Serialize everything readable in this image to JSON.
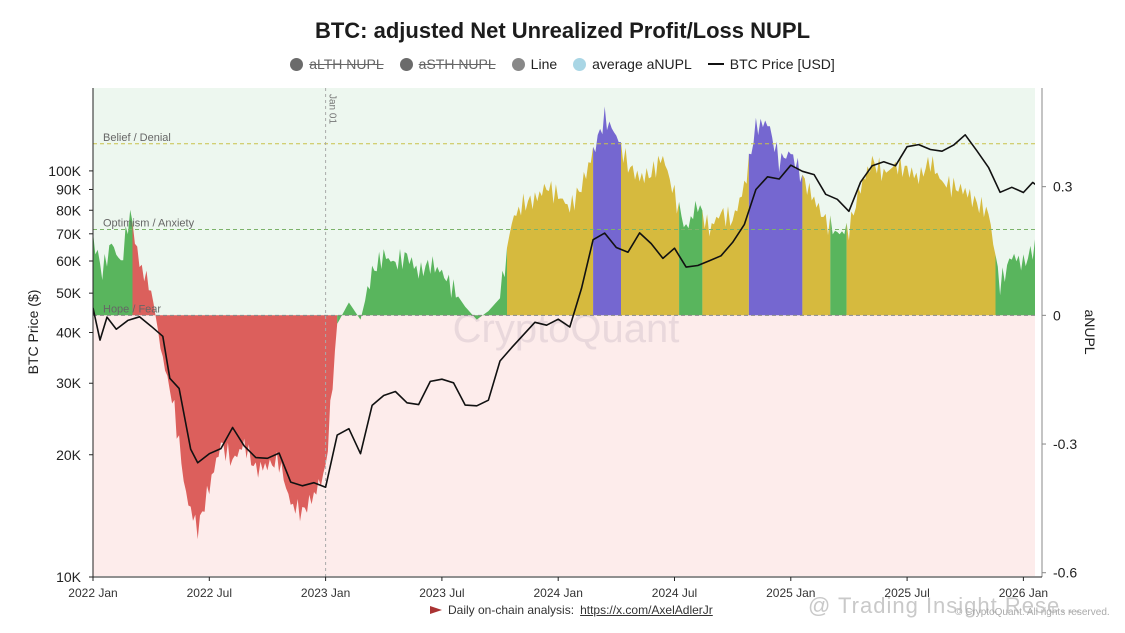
{
  "title": "BTC: adjusted Net Unrealized Profit/Loss NUPL",
  "legend": [
    {
      "label": "aLTH NUPL",
      "color": "#6b6b6b",
      "hidden": true,
      "icon": "dot-icon"
    },
    {
      "label": "aSTH NUPL",
      "color": "#6b6b6b",
      "hidden": true,
      "icon": "dot-icon"
    },
    {
      "label": "Line",
      "color": "#888888",
      "hidden": false,
      "icon": "dot-icon"
    },
    {
      "label": "average aNUPL",
      "color": "#a9d6e5",
      "hidden": false,
      "icon": "dot-icon"
    },
    {
      "label": "BTC Price [USD]",
      "color": "#111111",
      "hidden": false,
      "icon": "line-icon"
    }
  ],
  "footer": {
    "prefix": "Daily on-chain analysis:",
    "link": "https://x.com/AxelAdlerJr",
    "watermark": "CryptoQuant",
    "corner_watermark": "@ Trading Insight Rese...",
    "copyright": "© CryptoQuant. All rights reserved."
  },
  "colors": {
    "profit_zone": "#edf7ef",
    "loss_zone": "#fdeceb",
    "green": "#4caf50",
    "yellow": "#d4b42f",
    "purple": "#6a5acd",
    "red": "#d9534f",
    "price_line": "#111111"
  },
  "chart_data": {
    "type": "area",
    "title": "BTC: adjusted Net Unrealized Profit/Loss NUPL",
    "xlabel": "",
    "ylabel": "BTC Price ($)",
    "y2label": "aNUPL",
    "x_range": [
      2022.0,
      2026.08
    ],
    "x_ticks": [
      {
        "t": 2022.0,
        "label": "2022 Jan"
      },
      {
        "t": 2022.5,
        "label": "2022 Jul"
      },
      {
        "t": 2023.0,
        "label": "2023 Jan"
      },
      {
        "t": 2023.5,
        "label": "2023 Jul"
      },
      {
        "t": 2024.0,
        "label": "2024 Jan"
      },
      {
        "t": 2024.5,
        "label": "2024 Jul"
      },
      {
        "t": 2025.0,
        "label": "2025 Jan"
      },
      {
        "t": 2025.5,
        "label": "2025 Jul"
      },
      {
        "t": 2026.0,
        "label": "2026 Jan"
      }
    ],
    "price_axis": {
      "scale": "log",
      "range": [
        10000,
        160000
      ],
      "ticks": [
        {
          "v": 10000,
          "label": "10K"
        },
        {
          "v": 20000,
          "label": "20K"
        },
        {
          "v": 30000,
          "label": "30K"
        },
        {
          "v": 40000,
          "label": "40K"
        },
        {
          "v": 50000,
          "label": "50K"
        },
        {
          "v": 60000,
          "label": "60K"
        },
        {
          "v": 70000,
          "label": "70K"
        },
        {
          "v": 80000,
          "label": "80K"
        },
        {
          "v": 90000,
          "label": "90K"
        },
        {
          "v": 100000,
          "label": "100K"
        }
      ]
    },
    "anupl_axis": {
      "range": [
        -0.61,
        0.53
      ],
      "ticks": [
        {
          "v": 0.3,
          "label": "0.3"
        },
        {
          "v": 0,
          "label": "0"
        },
        {
          "v": -0.3,
          "label": "-0.3"
        },
        {
          "v": -0.6,
          "label": "-0.6"
        }
      ]
    },
    "zones": [
      {
        "label": "Belief / Denial",
        "value": 0.4,
        "color": "#c9c24a"
      },
      {
        "label": "Optimism / Anxiety",
        "value": 0.2,
        "color": "#7cb36a"
      },
      {
        "label": "Hope / Fear",
        "value": 0.0,
        "color": "#8a8a8a"
      }
    ],
    "vertical_markers": [
      {
        "t": 2023.0,
        "label": "Jan 01"
      }
    ],
    "anupl_series": [
      [
        2022.0,
        0.18
      ],
      [
        2022.04,
        0.1
      ],
      [
        2022.08,
        0.17
      ],
      [
        2022.12,
        0.12
      ],
      [
        2022.16,
        0.24
      ],
      [
        2022.2,
        0.12
      ],
      [
        2022.25,
        0.06
      ],
      [
        2022.3,
        -0.1
      ],
      [
        2022.35,
        -0.22
      ],
      [
        2022.4,
        -0.42
      ],
      [
        2022.45,
        -0.5
      ],
      [
        2022.5,
        -0.4
      ],
      [
        2022.55,
        -0.3
      ],
      [
        2022.6,
        -0.34
      ],
      [
        2022.65,
        -0.3
      ],
      [
        2022.7,
        -0.36
      ],
      [
        2022.75,
        -0.35
      ],
      [
        2022.8,
        -0.34
      ],
      [
        2022.85,
        -0.44
      ],
      [
        2022.9,
        -0.46
      ],
      [
        2022.95,
        -0.42
      ],
      [
        2023.0,
        -0.36
      ],
      [
        2023.05,
        -0.02
      ],
      [
        2023.1,
        0.03
      ],
      [
        2023.15,
        -0.01
      ],
      [
        2023.2,
        0.1
      ],
      [
        2023.25,
        0.14
      ],
      [
        2023.3,
        0.12
      ],
      [
        2023.35,
        0.14
      ],
      [
        2023.4,
        0.1
      ],
      [
        2023.45,
        0.12
      ],
      [
        2023.5,
        0.1
      ],
      [
        2023.55,
        0.06
      ],
      [
        2023.6,
        0.02
      ],
      [
        2023.65,
        -0.01
      ],
      [
        2023.7,
        0.01
      ],
      [
        2023.75,
        0.04
      ],
      [
        2023.8,
        0.22
      ],
      [
        2023.85,
        0.26
      ],
      [
        2023.9,
        0.27
      ],
      [
        2023.95,
        0.3
      ],
      [
        2024.0,
        0.28
      ],
      [
        2024.05,
        0.25
      ],
      [
        2024.1,
        0.3
      ],
      [
        2024.15,
        0.38
      ],
      [
        2024.2,
        0.46
      ],
      [
        2024.25,
        0.42
      ],
      [
        2024.3,
        0.35
      ],
      [
        2024.35,
        0.32
      ],
      [
        2024.4,
        0.33
      ],
      [
        2024.45,
        0.37
      ],
      [
        2024.5,
        0.28
      ],
      [
        2024.55,
        0.2
      ],
      [
        2024.6,
        0.26
      ],
      [
        2024.65,
        0.2
      ],
      [
        2024.7,
        0.24
      ],
      [
        2024.75,
        0.22
      ],
      [
        2024.8,
        0.3
      ],
      [
        2024.85,
        0.44
      ],
      [
        2024.9,
        0.45
      ],
      [
        2024.95,
        0.36
      ],
      [
        2025.0,
        0.38
      ],
      [
        2025.05,
        0.32
      ],
      [
        2025.1,
        0.27
      ],
      [
        2025.15,
        0.22
      ],
      [
        2025.2,
        0.19
      ],
      [
        2025.25,
        0.2
      ],
      [
        2025.3,
        0.3
      ],
      [
        2025.35,
        0.36
      ],
      [
        2025.4,
        0.33
      ],
      [
        2025.45,
        0.35
      ],
      [
        2025.5,
        0.34
      ],
      [
        2025.55,
        0.32
      ],
      [
        2025.6,
        0.36
      ],
      [
        2025.65,
        0.31
      ],
      [
        2025.7,
        0.3
      ],
      [
        2025.75,
        0.29
      ],
      [
        2025.8,
        0.26
      ],
      [
        2025.85,
        0.24
      ],
      [
        2025.9,
        0.07
      ],
      [
        2025.95,
        0.14
      ],
      [
        2026.0,
        0.12
      ],
      [
        2026.05,
        0.16
      ],
      [
        2026.07,
        0.12
      ]
    ],
    "price_series": [
      [
        2022.0,
        46000
      ],
      [
        2022.03,
        38000
      ],
      [
        2022.06,
        43000
      ],
      [
        2022.1,
        40000
      ],
      [
        2022.15,
        42000
      ],
      [
        2022.2,
        43000
      ],
      [
        2022.25,
        41000
      ],
      [
        2022.3,
        39000
      ],
      [
        2022.33,
        31000
      ],
      [
        2022.37,
        29500
      ],
      [
        2022.42,
        21000
      ],
      [
        2022.45,
        19500
      ],
      [
        2022.5,
        20500
      ],
      [
        2022.55,
        21000
      ],
      [
        2022.6,
        23500
      ],
      [
        2022.65,
        21000
      ],
      [
        2022.7,
        19500
      ],
      [
        2022.75,
        19300
      ],
      [
        2022.8,
        19800
      ],
      [
        2022.85,
        16800
      ],
      [
        2022.9,
        16500
      ],
      [
        2022.95,
        16900
      ],
      [
        2023.0,
        16600
      ],
      [
        2023.05,
        22500
      ],
      [
        2023.1,
        23500
      ],
      [
        2023.15,
        20500
      ],
      [
        2023.2,
        27000
      ],
      [
        2023.25,
        28500
      ],
      [
        2023.3,
        29000
      ],
      [
        2023.35,
        27000
      ],
      [
        2023.4,
        26500
      ],
      [
        2023.45,
        30000
      ],
      [
        2023.5,
        30200
      ],
      [
        2023.55,
        29500
      ],
      [
        2023.6,
        26000
      ],
      [
        2023.65,
        26000
      ],
      [
        2023.7,
        27000
      ],
      [
        2023.75,
        34000
      ],
      [
        2023.8,
        37000
      ],
      [
        2023.9,
        43000
      ],
      [
        2023.95,
        42500
      ],
      [
        2024.0,
        44000
      ],
      [
        2024.05,
        42000
      ],
      [
        2024.1,
        52000
      ],
      [
        2024.15,
        68000
      ],
      [
        2024.2,
        70000
      ],
      [
        2024.25,
        64000
      ],
      [
        2024.3,
        62000
      ],
      [
        2024.35,
        69000
      ],
      [
        2024.4,
        65000
      ],
      [
        2024.45,
        60000
      ],
      [
        2024.5,
        64000
      ],
      [
        2024.55,
        58000
      ],
      [
        2024.6,
        59000
      ],
      [
        2024.65,
        61000
      ],
      [
        2024.7,
        63000
      ],
      [
        2024.75,
        68000
      ],
      [
        2024.8,
        75000
      ],
      [
        2024.85,
        91000
      ],
      [
        2024.9,
        97000
      ],
      [
        2024.95,
        95000
      ],
      [
        2025.0,
        102000
      ],
      [
        2025.05,
        98000
      ],
      [
        2025.1,
        96000
      ],
      [
        2025.15,
        86000
      ],
      [
        2025.2,
        84000
      ],
      [
        2025.25,
        79000
      ],
      [
        2025.3,
        94000
      ],
      [
        2025.35,
        104000
      ],
      [
        2025.4,
        107000
      ],
      [
        2025.45,
        105000
      ],
      [
        2025.5,
        117000
      ],
      [
        2025.55,
        118000
      ],
      [
        2025.6,
        114000
      ],
      [
        2025.65,
        112000
      ],
      [
        2025.7,
        115000
      ],
      [
        2025.75,
        121000
      ],
      [
        2025.8,
        110000
      ],
      [
        2025.85,
        100000
      ],
      [
        2025.9,
        87000
      ],
      [
        2025.95,
        90000
      ],
      [
        2026.0,
        88000
      ],
      [
        2026.04,
        94000
      ],
      [
        2026.07,
        91000
      ]
    ],
    "color_segments": [
      {
        "from": 2022.0,
        "to": 2022.17,
        "color": "green"
      },
      {
        "from": 2022.17,
        "to": 2023.05,
        "color": "red"
      },
      {
        "from": 2023.05,
        "to": 2023.78,
        "color": "green"
      },
      {
        "from": 2023.78,
        "to": 2024.15,
        "color": "yellow"
      },
      {
        "from": 2024.15,
        "to": 2024.27,
        "color": "purple"
      },
      {
        "from": 2024.27,
        "to": 2024.52,
        "color": "yellow"
      },
      {
        "from": 2024.52,
        "to": 2024.62,
        "color": "green"
      },
      {
        "from": 2024.62,
        "to": 2024.82,
        "color": "yellow"
      },
      {
        "from": 2024.82,
        "to": 2025.05,
        "color": "purple"
      },
      {
        "from": 2025.05,
        "to": 2025.17,
        "color": "yellow"
      },
      {
        "from": 2025.17,
        "to": 2025.24,
        "color": "green"
      },
      {
        "from": 2025.24,
        "to": 2025.88,
        "color": "yellow"
      },
      {
        "from": 2025.88,
        "to": 2026.08,
        "color": "green"
      }
    ]
  }
}
